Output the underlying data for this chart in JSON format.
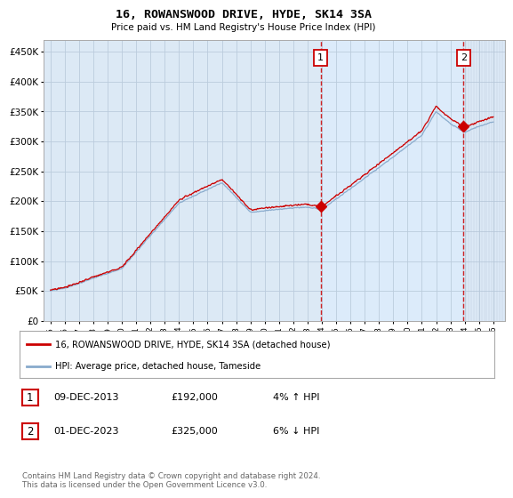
{
  "title": "16, ROWANSWOOD DRIVE, HYDE, SK14 3SA",
  "subtitle": "Price paid vs. HM Land Registry's House Price Index (HPI)",
  "ytick_values": [
    0,
    50000,
    100000,
    150000,
    200000,
    250000,
    300000,
    350000,
    400000,
    450000
  ],
  "ylim": [
    0,
    470000
  ],
  "xmin": 1994.5,
  "xmax": 2026.8,
  "background_color": "#ffffff",
  "plot_bg_color": "#dce9f5",
  "grid_color": "#bbccdd",
  "red_line_color": "#cc0000",
  "blue_line_color": "#88aacc",
  "transaction1_x": 2013.92,
  "transaction1_y": 192000,
  "transaction2_x": 2023.92,
  "transaction2_y": 325000,
  "legend_line1": "16, ROWANSWOOD DRIVE, HYDE, SK14 3SA (detached house)",
  "legend_line2": "HPI: Average price, detached house, Tameside",
  "transaction1_date": "09-DEC-2013",
  "transaction1_price": "£192,000",
  "transaction1_hpi": "4% ↑ HPI",
  "transaction2_date": "01-DEC-2023",
  "transaction2_price": "£325,000",
  "transaction2_hpi": "6% ↓ HPI",
  "footer": "Contains HM Land Registry data © Crown copyright and database right 2024.\nThis data is licensed under the Open Government Licence v3.0.",
  "xtick_years": [
    1995,
    1996,
    1997,
    1998,
    1999,
    2000,
    2001,
    2002,
    2003,
    2004,
    2005,
    2006,
    2007,
    2008,
    2009,
    2010,
    2011,
    2012,
    2013,
    2014,
    2015,
    2016,
    2017,
    2018,
    2019,
    2020,
    2021,
    2022,
    2023,
    2024,
    2025,
    2026
  ]
}
